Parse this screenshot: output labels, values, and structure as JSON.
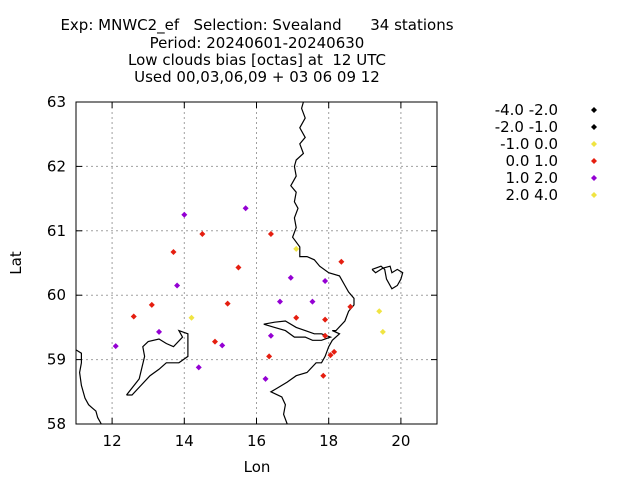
{
  "chart_data": {
    "type": "scatter",
    "title_lines": [
      "Exp: MNWC2_ef   Selection: Svealand      34 stations",
      "Period: 20240601-20240630",
      "Low clouds bias [octas] at  12 UTC",
      "Used 00,03,06,09 + 03 06 09 12"
    ],
    "xlabel": "Lon",
    "ylabel": "Lat",
    "xlim": [
      11,
      21
    ],
    "ylim": [
      58,
      63
    ],
    "xticks": [
      12,
      14,
      16,
      18,
      20
    ],
    "yticks": [
      58,
      59,
      60,
      61,
      62,
      63
    ],
    "grid": true,
    "legend_position": "right",
    "legend": [
      {
        "label": "-4.0 -2.0",
        "color": "#000000"
      },
      {
        "label": "-2.0 -1.0",
        "color": "#000000"
      },
      {
        "label": "-1.0 0.0",
        "color": "#f0e442"
      },
      {
        "label": "0.0 1.0",
        "color": "#e51e10"
      },
      {
        "label": "1.0 2.0",
        "color": "#9400d3"
      },
      {
        "label": "2.0 4.0",
        "color": "#f0e442"
      }
    ],
    "points": [
      {
        "lon": 14.0,
        "lat": 61.25,
        "bin": 4
      },
      {
        "lon": 15.7,
        "lat": 61.35,
        "bin": 4
      },
      {
        "lon": 14.5,
        "lat": 60.95,
        "bin": 3
      },
      {
        "lon": 16.4,
        "lat": 60.95,
        "bin": 3
      },
      {
        "lon": 13.7,
        "lat": 60.67,
        "bin": 3
      },
      {
        "lon": 17.1,
        "lat": 60.72,
        "bin": 2
      },
      {
        "lon": 18.35,
        "lat": 60.52,
        "bin": 3
      },
      {
        "lon": 15.5,
        "lat": 60.43,
        "bin": 3
      },
      {
        "lon": 16.95,
        "lat": 60.27,
        "bin": 4
      },
      {
        "lon": 13.8,
        "lat": 60.15,
        "bin": 4
      },
      {
        "lon": 17.9,
        "lat": 60.22,
        "bin": 4
      },
      {
        "lon": 16.65,
        "lat": 59.9,
        "bin": 4
      },
      {
        "lon": 17.55,
        "lat": 59.9,
        "bin": 4
      },
      {
        "lon": 13.1,
        "lat": 59.85,
        "bin": 3
      },
      {
        "lon": 15.2,
        "lat": 59.87,
        "bin": 3
      },
      {
        "lon": 18.6,
        "lat": 59.82,
        "bin": 3
      },
      {
        "lon": 19.4,
        "lat": 59.75,
        "bin": 2
      },
      {
        "lon": 12.6,
        "lat": 59.67,
        "bin": 3
      },
      {
        "lon": 14.2,
        "lat": 59.65,
        "bin": 2
      },
      {
        "lon": 17.1,
        "lat": 59.65,
        "bin": 3
      },
      {
        "lon": 17.9,
        "lat": 59.62,
        "bin": 3
      },
      {
        "lon": 13.3,
        "lat": 59.43,
        "bin": 4
      },
      {
        "lon": 19.5,
        "lat": 59.43,
        "bin": 2
      },
      {
        "lon": 16.4,
        "lat": 59.37,
        "bin": 4
      },
      {
        "lon": 17.9,
        "lat": 59.37,
        "bin": 3
      },
      {
        "lon": 14.85,
        "lat": 59.28,
        "bin": 3
      },
      {
        "lon": 15.05,
        "lat": 59.22,
        "bin": 4
      },
      {
        "lon": 12.1,
        "lat": 59.21,
        "bin": 4
      },
      {
        "lon": 16.35,
        "lat": 59.05,
        "bin": 3
      },
      {
        "lon": 18.05,
        "lat": 59.07,
        "bin": 3
      },
      {
        "lon": 18.15,
        "lat": 59.12,
        "bin": 3
      },
      {
        "lon": 14.4,
        "lat": 58.88,
        "bin": 4
      },
      {
        "lon": 17.85,
        "lat": 58.75,
        "bin": 3
      },
      {
        "lon": 16.25,
        "lat": 58.7,
        "bin": 4
      }
    ],
    "coastline": [
      [
        [
          17.3,
          63.0
        ],
        [
          17.25,
          62.9
        ],
        [
          17.35,
          62.75
        ],
        [
          17.2,
          62.6
        ],
        [
          17.35,
          62.45
        ],
        [
          17.2,
          62.35
        ],
        [
          17.3,
          62.2
        ],
        [
          17.1,
          62.1
        ],
        [
          17.05,
          62.0
        ],
        [
          17.1,
          61.85
        ],
        [
          16.95,
          61.7
        ],
        [
          17.1,
          61.6
        ],
        [
          17.05,
          61.45
        ],
        [
          17.15,
          61.35
        ],
        [
          17.05,
          61.2
        ],
        [
          17.1,
          61.05
        ],
        [
          17.0,
          60.9
        ],
        [
          17.2,
          60.75
        ],
        [
          17.2,
          60.6
        ],
        [
          17.4,
          60.6
        ],
        [
          17.6,
          60.55
        ],
        [
          17.75,
          60.45
        ],
        [
          18.0,
          60.35
        ],
        [
          18.3,
          60.3
        ],
        [
          18.45,
          60.15
        ],
        [
          18.55,
          60.05
        ],
        [
          18.7,
          59.95
        ],
        [
          18.7,
          59.85
        ],
        [
          18.55,
          59.75
        ],
        [
          18.45,
          59.6
        ],
        [
          18.2,
          59.45
        ],
        [
          18.1,
          59.45
        ],
        [
          18.3,
          59.4
        ],
        [
          18.1,
          59.3
        ],
        [
          18.0,
          59.2
        ],
        [
          17.9,
          59.05
        ],
        [
          17.8,
          58.95
        ],
        [
          17.65,
          58.95
        ],
        [
          17.4,
          58.8
        ],
        [
          17.1,
          58.75
        ],
        [
          16.85,
          58.65
        ],
        [
          16.7,
          58.6
        ],
        [
          16.55,
          58.55
        ],
        [
          16.4,
          58.5
        ],
        [
          16.7,
          58.42
        ],
        [
          16.8,
          58.3
        ],
        [
          16.75,
          58.15
        ],
        [
          16.85,
          58.0
        ]
      ],
      [
        [
          11.0,
          59.15
        ],
        [
          11.15,
          59.1
        ],
        [
          11.15,
          58.95
        ],
        [
          11.1,
          58.8
        ],
        [
          11.15,
          58.6
        ],
        [
          11.25,
          58.4
        ],
        [
          11.35,
          58.3
        ],
        [
          11.45,
          58.25
        ],
        [
          11.55,
          58.2
        ],
        [
          11.6,
          58.1
        ],
        [
          11.7,
          58.0
        ]
      ],
      [
        [
          16.2,
          59.55
        ],
        [
          16.5,
          59.58
        ],
        [
          16.8,
          59.6
        ],
        [
          17.1,
          59.5
        ],
        [
          17.35,
          59.45
        ],
        [
          17.6,
          59.4
        ],
        [
          17.8,
          59.4
        ],
        [
          18.05,
          59.35
        ],
        [
          17.8,
          59.3
        ],
        [
          17.55,
          59.3
        ],
        [
          17.35,
          59.35
        ],
        [
          17.05,
          59.35
        ],
        [
          16.8,
          59.45
        ],
        [
          16.5,
          59.5
        ],
        [
          16.2,
          59.55
        ]
      ],
      [
        [
          12.4,
          58.45
        ],
        [
          12.75,
          58.7
        ],
        [
          12.9,
          59.05
        ],
        [
          12.85,
          59.2
        ],
        [
          13.0,
          59.28
        ],
        [
          13.3,
          59.32
        ],
        [
          13.5,
          59.25
        ],
        [
          13.7,
          59.2
        ],
        [
          13.95,
          59.35
        ],
        [
          13.85,
          59.45
        ],
        [
          14.1,
          59.4
        ],
        [
          14.1,
          59.05
        ],
        [
          13.85,
          58.95
        ],
        [
          13.5,
          58.95
        ],
        [
          13.3,
          58.85
        ],
        [
          13.05,
          58.75
        ],
        [
          12.8,
          58.6
        ],
        [
          12.55,
          58.45
        ],
        [
          12.4,
          58.45
        ]
      ],
      [
        [
          19.2,
          60.4
        ],
        [
          19.45,
          60.45
        ],
        [
          19.55,
          60.4
        ],
        [
          19.6,
          60.25
        ],
        [
          19.75,
          60.1
        ],
        [
          19.9,
          60.15
        ],
        [
          20.0,
          60.25
        ],
        [
          20.05,
          60.35
        ],
        [
          19.9,
          60.4
        ],
        [
          19.75,
          60.35
        ],
        [
          19.7,
          60.45
        ],
        [
          19.5,
          60.42
        ],
        [
          19.3,
          60.35
        ],
        [
          19.2,
          60.4
        ]
      ]
    ]
  }
}
